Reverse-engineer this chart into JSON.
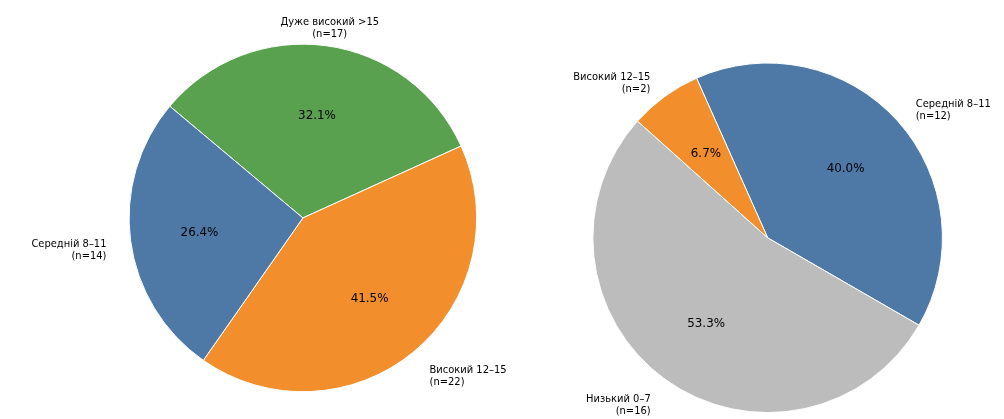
{
  "chart_data": [
    {
      "type": "pie",
      "categories": [
        "Дуже високий >15\n(n=17)",
        "Високий 12–15\n(n=22)",
        "Середній 8–11\n(n=14)"
      ],
      "values": [
        32.1,
        41.5,
        26.4
      ],
      "colors": [
        "#59a14f",
        "#f28e2b",
        "#4e79a7"
      ],
      "value_labels": [
        "32.1%",
        "41.5%",
        "26.4%"
      ]
    },
    {
      "type": "pie",
      "categories": [
        "Середній 8–11\n(n=12)",
        "Низький 0–7\n(n=16)",
        "Високий 12–15\n(n=2)"
      ],
      "values": [
        40.0,
        53.3,
        6.7
      ],
      "colors": [
        "#4e79a7",
        "#bcbcbc",
        "#f28e2b"
      ],
      "value_labels": [
        "40.0%",
        "53.3%",
        "6.7%"
      ]
    }
  ]
}
